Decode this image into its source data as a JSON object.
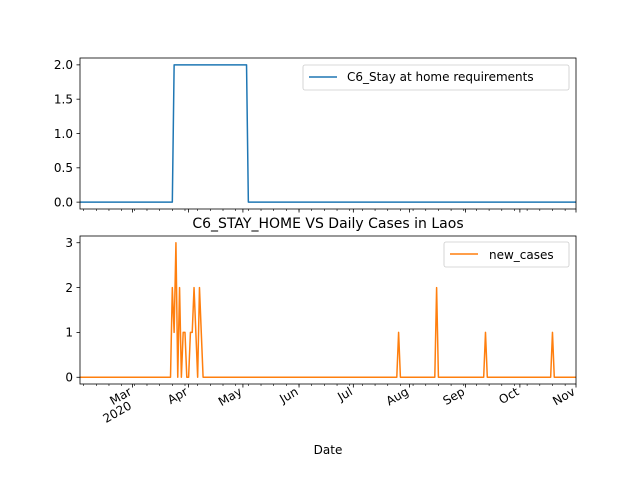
{
  "figure": {
    "xlabel": "Date"
  },
  "chart_data": [
    {
      "type": "line",
      "title": "",
      "xlabel": "",
      "ylabel": "",
      "xlim": [
        "2020-02-01",
        "2020-11-01"
      ],
      "ylim": [
        -0.1,
        2.1
      ],
      "yticks": [
        0.0,
        0.5,
        1.0,
        1.5,
        2.0
      ],
      "ytick_labels": [
        "0.0",
        "0.5",
        "1.0",
        "1.5",
        "2.0"
      ],
      "grid": false,
      "legend_position": "top-right",
      "series": [
        {
          "name": "C6_Stay at home requirements",
          "color": "#1f77b4",
          "x": [
            "2020-02-01",
            "2020-03-23",
            "2020-03-24",
            "2020-05-03",
            "2020-05-04",
            "2020-11-01"
          ],
          "y": [
            0,
            0,
            2,
            2,
            0,
            0
          ]
        }
      ]
    },
    {
      "type": "line",
      "title": "C6_STAY_HOME VS Daily Cases in Laos",
      "xlabel": "Date",
      "ylabel": "",
      "xlim": [
        "2020-02-01",
        "2020-11-01"
      ],
      "ylim": [
        -0.15,
        3.15
      ],
      "yticks": [
        0,
        1,
        2,
        3
      ],
      "ytick_labels": [
        "0",
        "1",
        "2",
        "3"
      ],
      "grid": false,
      "legend_position": "top-right",
      "x_major_ticks": [
        {
          "date": "2020-03-01",
          "label": "Mar",
          "sublabel": "2020"
        },
        {
          "date": "2020-04-01",
          "label": "Apr"
        },
        {
          "date": "2020-05-01",
          "label": "May"
        },
        {
          "date": "2020-06-01",
          "label": "Jun"
        },
        {
          "date": "2020-07-01",
          "label": "Jul"
        },
        {
          "date": "2020-08-01",
          "label": "Aug"
        },
        {
          "date": "2020-09-01",
          "label": "Sep"
        },
        {
          "date": "2020-10-01",
          "label": "Oct"
        },
        {
          "date": "2020-11-01",
          "label": "Nov"
        }
      ],
      "series": [
        {
          "name": "new_cases",
          "color": "#ff7f0e",
          "x": [
            "2020-02-01",
            "2020-03-22",
            "2020-03-23",
            "2020-03-24",
            "2020-03-25",
            "2020-03-26",
            "2020-03-27",
            "2020-03-28",
            "2020-03-29",
            "2020-03-30",
            "2020-03-31",
            "2020-04-01",
            "2020-04-02",
            "2020-04-03",
            "2020-04-04",
            "2020-04-05",
            "2020-04-06",
            "2020-04-07",
            "2020-04-08",
            "2020-04-09",
            "2020-04-10",
            "2020-04-11",
            "2020-04-12",
            "2020-04-13",
            "2020-07-25",
            "2020-07-26",
            "2020-07-27",
            "2020-08-15",
            "2020-08-16",
            "2020-08-17",
            "2020-09-11",
            "2020-09-12",
            "2020-09-13",
            "2020-10-18",
            "2020-10-19",
            "2020-10-20",
            "2020-11-01"
          ],
          "y": [
            0,
            0,
            2,
            1,
            3,
            0,
            2,
            0,
            1,
            1,
            0,
            0,
            1,
            1,
            2,
            1,
            0,
            2,
            1,
            0,
            0,
            0,
            0,
            0,
            0,
            1,
            0,
            0,
            2,
            0,
            0,
            1,
            0,
            0,
            1,
            0,
            0
          ]
        }
      ]
    }
  ]
}
